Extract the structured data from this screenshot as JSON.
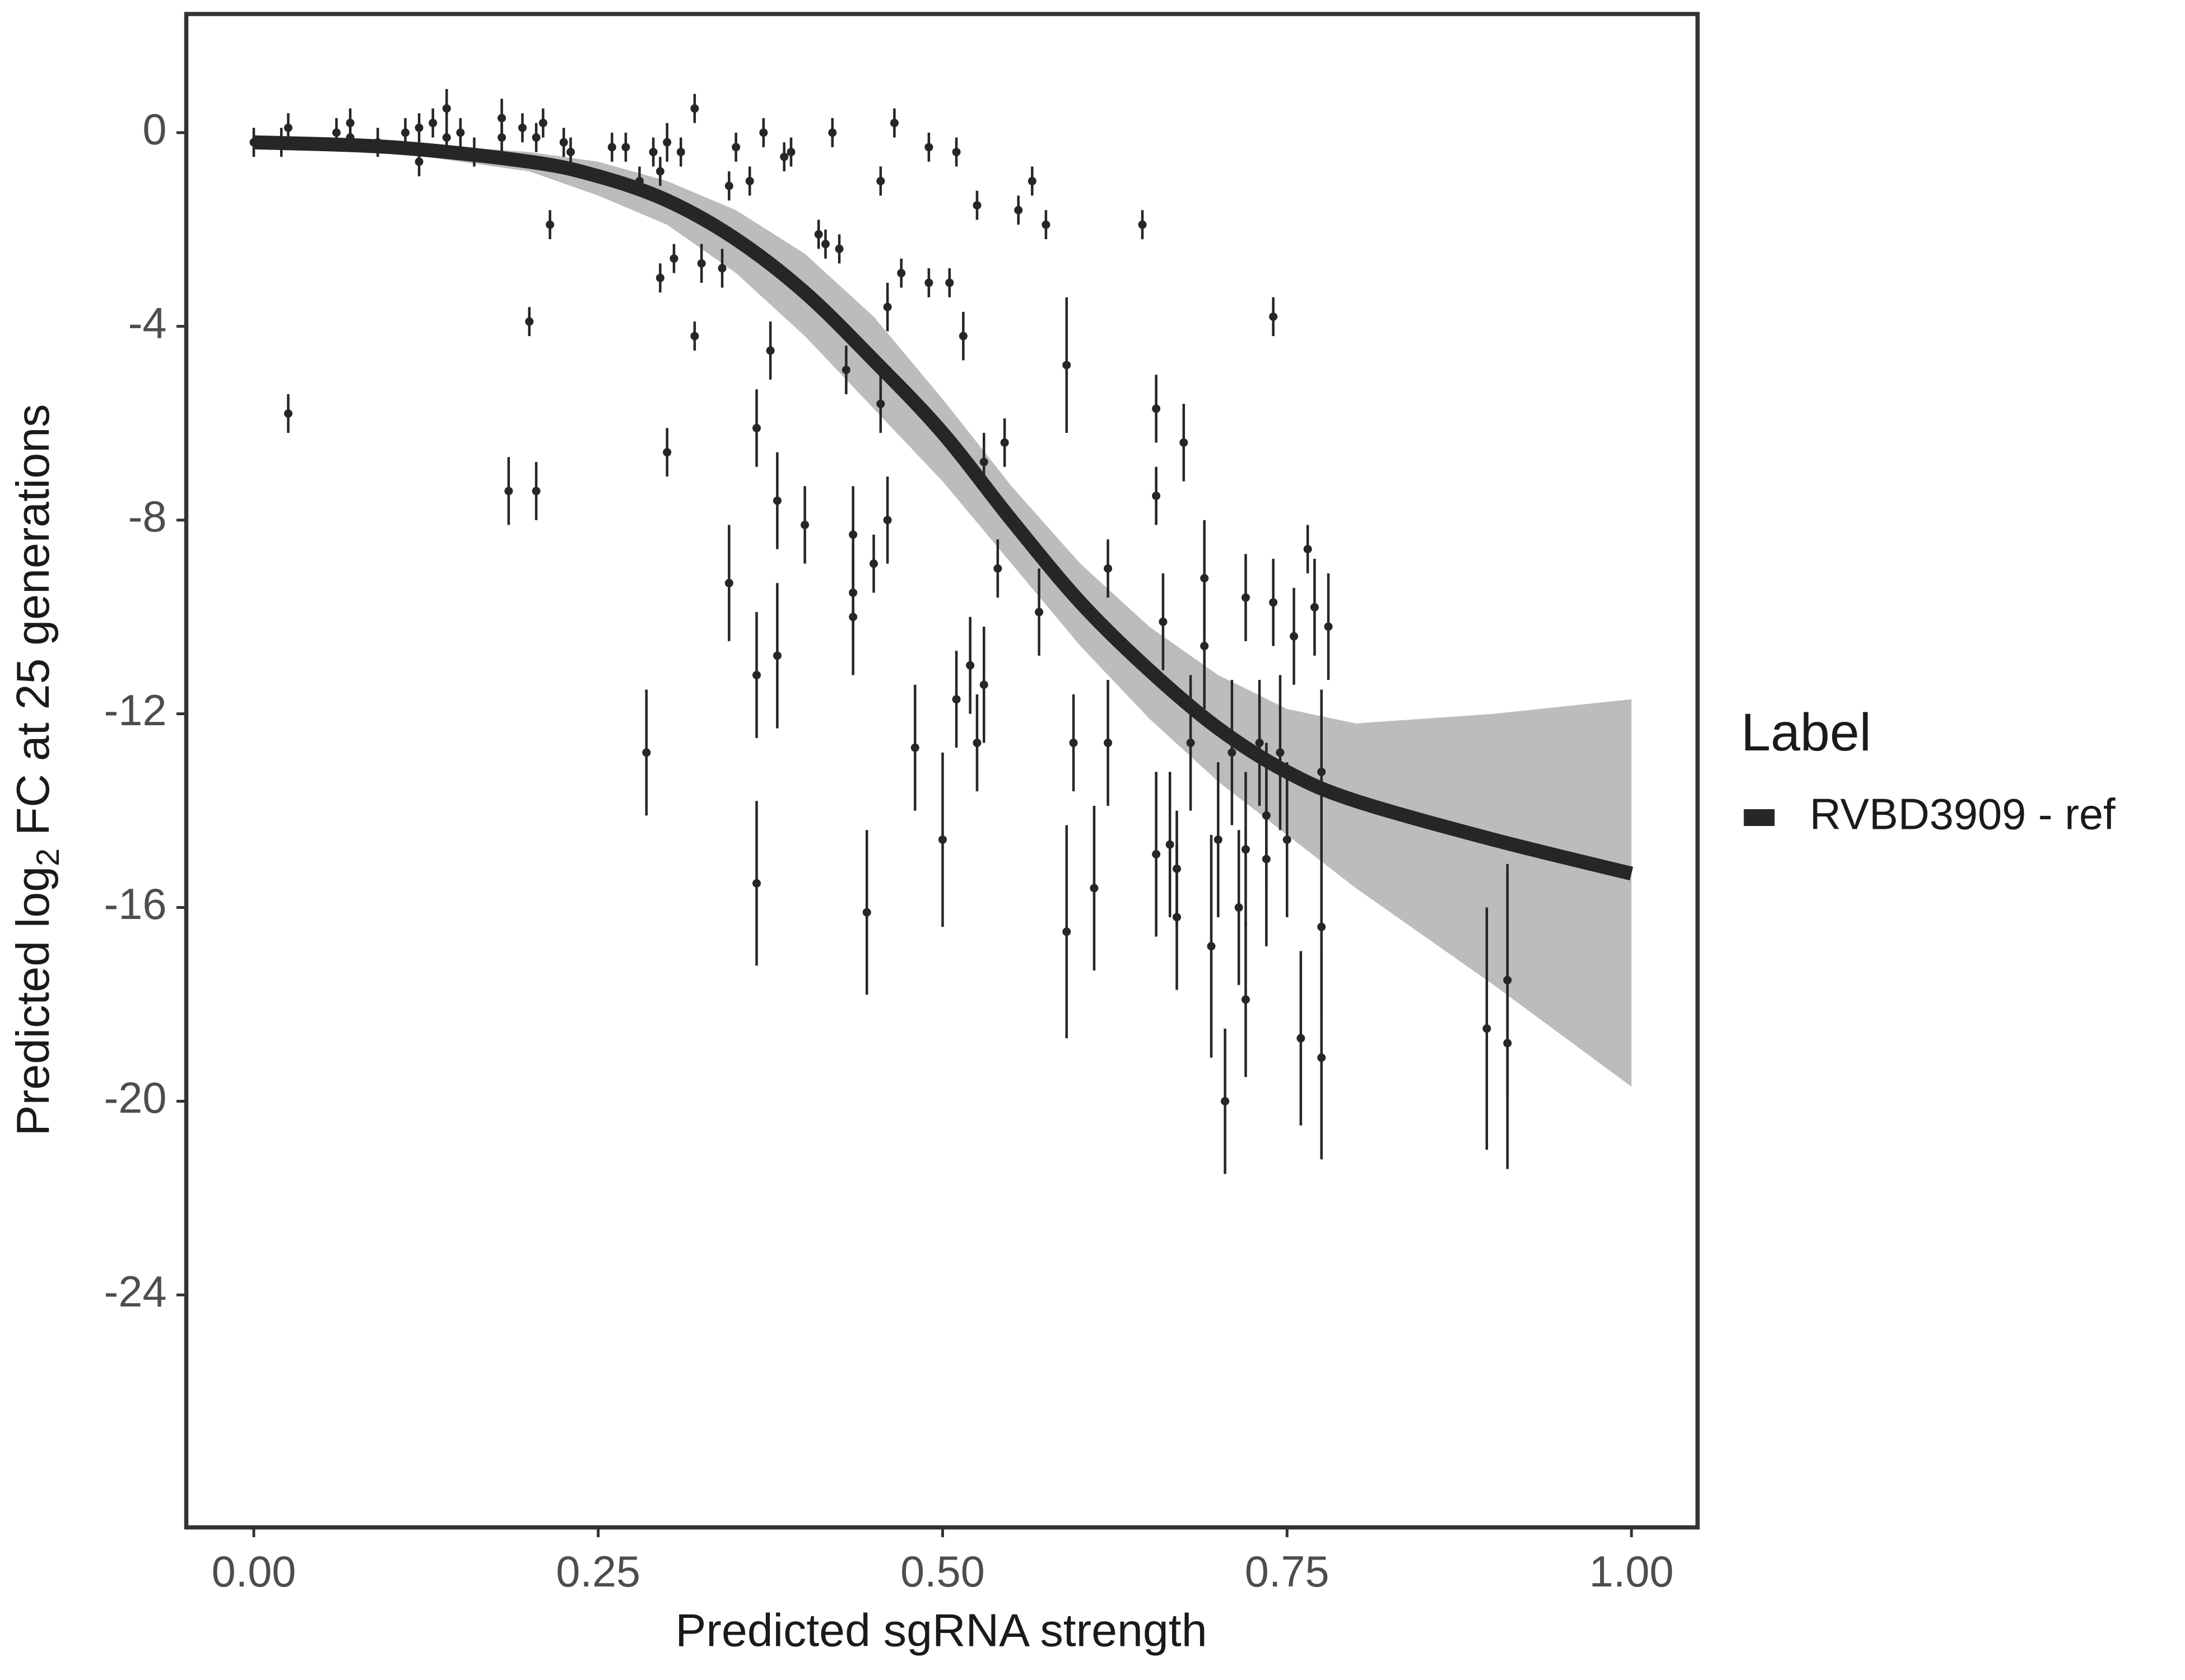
{
  "chart_data": {
    "type": "scatter",
    "x_label": "Predicted sgRNA strength",
    "y_label": {
      "prefix": "Predicted  log",
      "subscript": "2",
      "suffix": " FC at 25 generations"
    },
    "xlim": [
      -0.049,
      1.048
    ],
    "ylim": [
      -28.8,
      2.45
    ],
    "xticks": [
      {
        "value": 0,
        "label": "0.00"
      },
      0.25,
      {
        "value": 0.5,
        "label": "0.50"
      },
      0.75,
      {
        "value": 1,
        "label": "1.00"
      }
    ],
    "yticks": [
      0,
      -4,
      -8,
      -12,
      -16,
      -20,
      -24
    ],
    "grid": false,
    "legend": {
      "title": "Label",
      "position": "right"
    },
    "series": [
      {
        "name": "RVBD3909 - ref",
        "color": "#262626",
        "x": [
          0.0,
          0.02,
          0.025,
          0.025,
          0.06,
          0.07,
          0.07,
          0.09,
          0.11,
          0.12,
          0.12,
          0.13,
          0.14,
          0.14,
          0.15,
          0.16,
          0.18,
          0.18,
          0.185,
          0.195,
          0.2,
          0.205,
          0.205,
          0.21,
          0.215,
          0.225,
          0.23,
          0.26,
          0.27,
          0.28,
          0.285,
          0.29,
          0.295,
          0.295,
          0.3,
          0.3,
          0.305,
          0.31,
          0.32,
          0.32,
          0.325,
          0.34,
          0.345,
          0.345,
          0.35,
          0.36,
          0.365,
          0.365,
          0.365,
          0.37,
          0.375,
          0.38,
          0.38,
          0.385,
          0.39,
          0.4,
          0.41,
          0.415,
          0.42,
          0.425,
          0.43,
          0.435,
          0.435,
          0.435,
          0.445,
          0.45,
          0.455,
          0.455,
          0.46,
          0.46,
          0.465,
          0.47,
          0.48,
          0.49,
          0.49,
          0.5,
          0.505,
          0.51,
          0.51,
          0.515,
          0.52,
          0.525,
          0.525,
          0.53,
          0.53,
          0.54,
          0.545,
          0.555,
          0.565,
          0.57,
          0.575,
          0.59,
          0.59,
          0.595,
          0.61,
          0.62,
          0.62,
          0.645,
          0.655,
          0.655,
          0.655,
          0.66,
          0.665,
          0.67,
          0.67,
          0.675,
          0.68,
          0.69,
          0.69,
          0.695,
          0.7,
          0.705,
          0.71,
          0.715,
          0.72,
          0.72,
          0.72,
          0.73,
          0.735,
          0.735,
          0.74,
          0.74,
          0.745,
          0.75,
          0.755,
          0.76,
          0.765,
          0.77,
          0.775,
          0.775,
          0.775,
          0.78,
          0.895,
          0.91,
          0.91
        ],
        "values": [
          -0.2,
          -0.2,
          0.1,
          -5.8,
          0.0,
          -0.1,
          0.2,
          -0.2,
          0.0,
          0.1,
          -0.6,
          0.2,
          0.5,
          -0.1,
          0.0,
          -0.4,
          0.3,
          -0.1,
          -7.4,
          0.1,
          -3.9,
          -7.4,
          -0.1,
          0.2,
          -1.9,
          -0.2,
          -0.4,
          -0.3,
          -0.3,
          -1.0,
          -12.8,
          -0.4,
          -0.8,
          -3.0,
          -6.6,
          -0.2,
          -2.6,
          -0.4,
          0.5,
          -4.2,
          -2.7,
          -2.8,
          -9.3,
          -1.1,
          -0.3,
          -1.0,
          -6.1,
          -11.2,
          -15.5,
          0.0,
          -4.5,
          -7.6,
          -10.8,
          -0.5,
          -0.4,
          -8.1,
          -2.1,
          -2.3,
          0.0,
          -2.4,
          -4.9,
          -8.3,
          -9.5,
          -10.0,
          -16.1,
          -8.9,
          -1.0,
          -5.6,
          -3.6,
          -8.0,
          0.2,
          -2.9,
          -12.7,
          -0.3,
          -3.1,
          -14.6,
          -3.1,
          -11.7,
          -0.4,
          -4.2,
          -11.0,
          -1.5,
          -12.6,
          -6.8,
          -11.4,
          -9.0,
          -6.4,
          -1.6,
          -1.0,
          -9.9,
          -1.9,
          -4.8,
          -16.5,
          -12.6,
          -15.6,
          -9.0,
          -12.6,
          -1.9,
          -5.7,
          -7.5,
          -14.9,
          -10.1,
          -14.7,
          -16.2,
          -15.2,
          -6.4,
          -12.6,
          -9.2,
          -10.6,
          -16.8,
          -14.6,
          -20.0,
          -12.8,
          -16.0,
          -14.8,
          -9.6,
          -17.9,
          -12.6,
          -14.1,
          -15.0,
          -9.7,
          -3.8,
          -12.8,
          -14.6,
          -10.4,
          -18.7,
          -8.6,
          -9.8,
          -13.2,
          -16.4,
          -19.1,
          -10.2,
          -18.5,
          -17.5,
          -18.8
        ],
        "errors": [
          0.3,
          0.3,
          0.3,
          0.4,
          0.3,
          0.3,
          0.3,
          0.3,
          0.3,
          0.3,
          0.3,
          0.3,
          0.4,
          0.3,
          0.3,
          0.3,
          0.4,
          0.3,
          0.7,
          0.3,
          0.3,
          0.6,
          0.3,
          0.3,
          0.3,
          0.3,
          0.3,
          0.3,
          0.3,
          0.3,
          1.3,
          0.3,
          0.3,
          0.3,
          0.5,
          0.4,
          0.3,
          0.3,
          0.3,
          0.3,
          0.4,
          0.4,
          1.2,
          0.3,
          0.3,
          0.3,
          0.8,
          1.3,
          1.7,
          0.3,
          0.6,
          1.0,
          1.5,
          0.3,
          0.3,
          0.8,
          0.3,
          0.3,
          0.3,
          0.3,
          0.5,
          1.0,
          1.0,
          1.2,
          1.7,
          0.6,
          0.3,
          0.6,
          0.5,
          0.9,
          0.3,
          0.3,
          1.3,
          0.3,
          0.3,
          1.8,
          0.3,
          1.0,
          0.3,
          0.5,
          1.0,
          0.3,
          1.0,
          0.6,
          1.2,
          0.6,
          0.5,
          0.3,
          0.3,
          0.9,
          0.3,
          1.4,
          2.2,
          1.0,
          1.7,
          0.6,
          1.3,
          0.3,
          0.7,
          0.6,
          1.7,
          1.0,
          1.5,
          1.5,
          1.2,
          0.8,
          1.4,
          1.2,
          1.3,
          2.3,
          1.6,
          1.5,
          1.5,
          1.6,
          1.6,
          0.9,
          1.6,
          1.3,
          1.5,
          1.8,
          0.9,
          0.4,
          1.6,
          1.6,
          1.0,
          1.8,
          0.5,
          1.0,
          1.7,
          1.7,
          2.1,
          1.1,
          2.5,
          2.4,
          2.6
        ]
      }
    ],
    "fit": {
      "color": "#262626",
      "x": [
        0,
        0.1,
        0.2,
        0.25,
        0.3,
        0.35,
        0.4,
        0.45,
        0.5,
        0.55,
        0.6,
        0.65,
        0.7,
        0.75,
        0.8,
        0.9,
        1.0
      ],
      "values": [
        -0.2,
        -0.3,
        -0.6,
        -0.9,
        -1.4,
        -2.2,
        -3.3,
        -4.7,
        -6.2,
        -8.0,
        -9.7,
        -11.1,
        -12.3,
        -13.2,
        -13.8,
        -14.6,
        -15.3
      ]
    },
    "band": {
      "color": "#a6a6a6",
      "upper": [
        -0.1,
        -0.2,
        -0.4,
        -0.6,
        -1.0,
        -1.6,
        -2.5,
        -3.8,
        -5.5,
        -7.3,
        -8.9,
        -10.2,
        -11.2,
        -11.9,
        -12.2,
        -12.0,
        -11.7
      ],
      "lower": [
        -0.3,
        -0.4,
        -0.8,
        -1.3,
        -1.9,
        -2.9,
        -4.2,
        -5.7,
        -7.2,
        -8.9,
        -10.6,
        -12.1,
        -13.4,
        -14.5,
        -15.6,
        -17.6,
        -19.7
      ]
    }
  }
}
